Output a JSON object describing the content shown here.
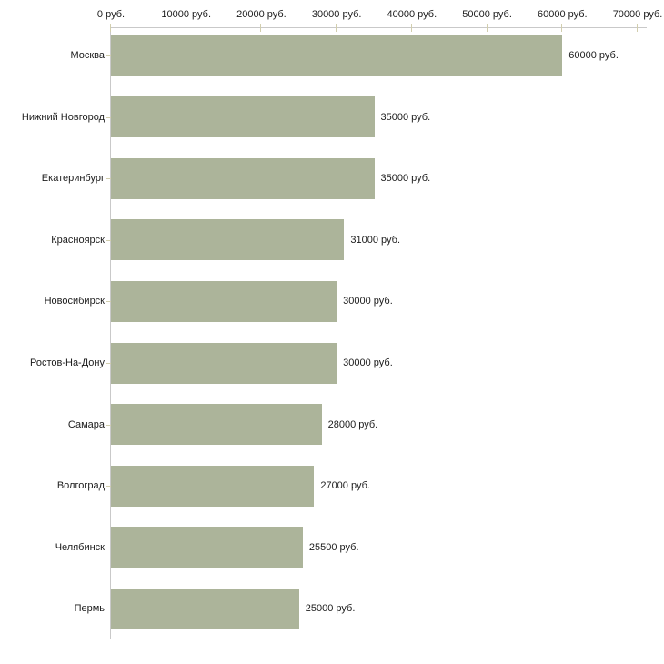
{
  "chart_data": {
    "type": "bar",
    "orientation": "horizontal",
    "title": "",
    "xlabel": "",
    "ylabel": "",
    "xlim": [
      0,
      70000
    ],
    "grid": false,
    "legend": null,
    "x_axis_position": "top",
    "x_tick_values": [
      0,
      10000,
      20000,
      30000,
      40000,
      50000,
      60000,
      70000
    ],
    "x_tick_labels": [
      "0 руб.",
      "10000 руб.",
      "20000 руб.",
      "30000 руб.",
      "40000 руб.",
      "50000 руб.",
      "60000 руб.",
      "70000 руб."
    ],
    "categories": [
      "Москва",
      "Нижний Новгород",
      "Екатеринбург",
      "Красноярск",
      "Новосибирск",
      "Ростов-На-Дону",
      "Самара",
      "Волгоград",
      "Челябинск",
      "Пермь"
    ],
    "values": [
      60000,
      35000,
      35000,
      31000,
      30000,
      30000,
      28000,
      27000,
      25500,
      25000
    ],
    "value_labels": [
      "60000 руб.",
      "35000 руб.",
      "35000 руб.",
      "31000 руб.",
      "30000 руб.",
      "30000 руб.",
      "28000 руб.",
      "27000 руб.",
      "25500 руб.",
      "25000 руб."
    ],
    "colors": {
      "bar": "#acb49a",
      "axis_line": "#c9c9c9",
      "tick_mark": "#d2ceae",
      "text": "#1c1c1c",
      "background": "#ffffff"
    }
  }
}
